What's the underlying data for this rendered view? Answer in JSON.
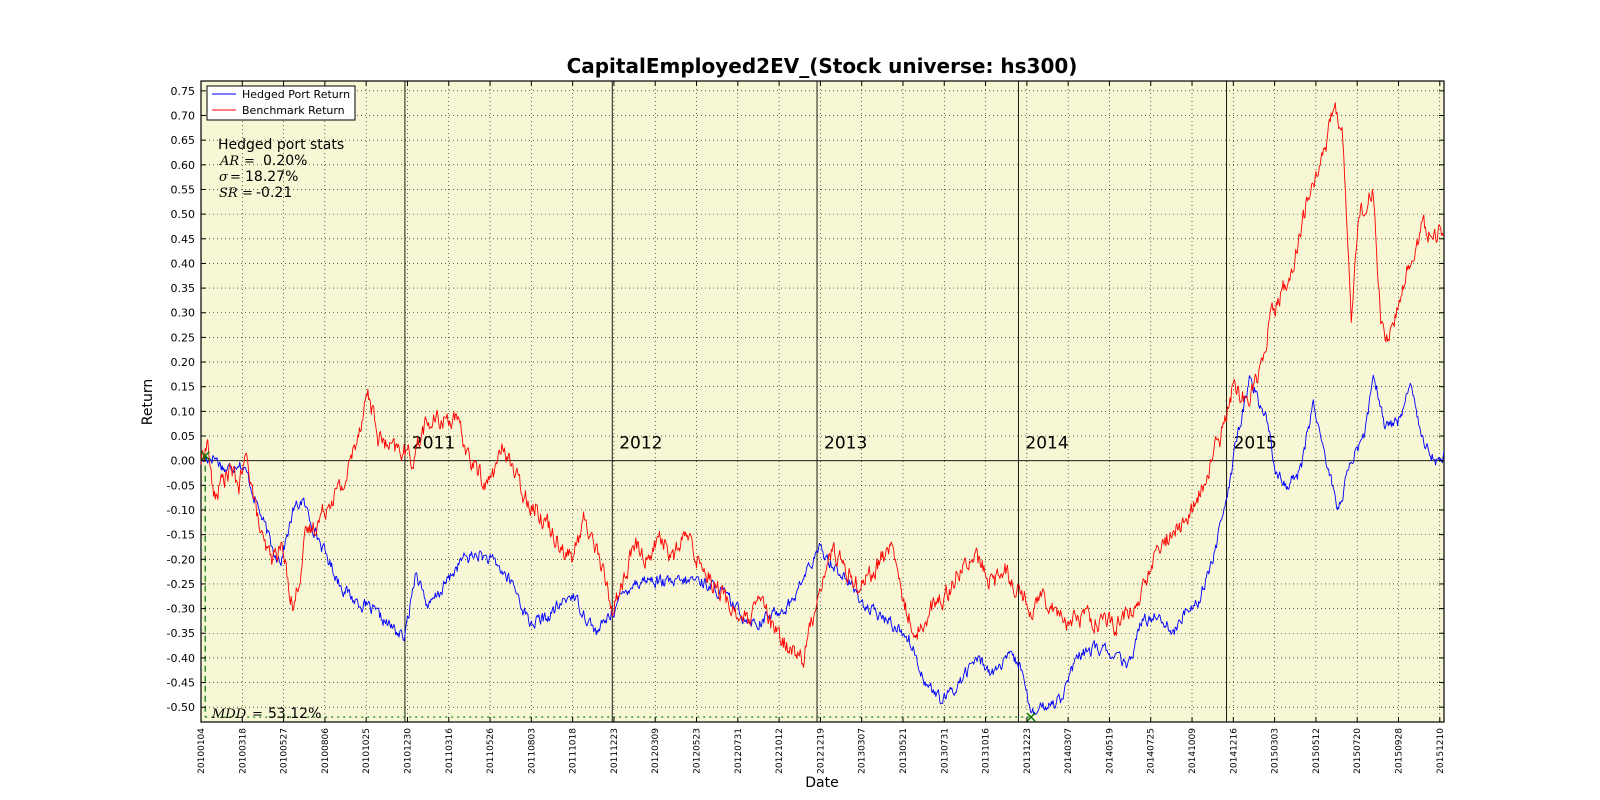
{
  "chart_data": {
    "type": "line",
    "title": "CapitalEmployed2EV_(Stock universe: hs300)",
    "xlabel": "Date",
    "ylabel": "Return",
    "ylim": [
      -0.53,
      0.77
    ],
    "yticks": [
      "0.75",
      "0.70",
      "0.65",
      "0.60",
      "0.55",
      "0.50",
      "0.45",
      "0.40",
      "0.35",
      "0.30",
      "0.25",
      "0.20",
      "0.15",
      "0.10",
      "0.05",
      "0.00",
      "-0.05",
      "-0.10",
      "-0.15",
      "-0.20",
      "-0.25",
      "-0.30",
      "-0.35",
      "-0.40",
      "-0.45",
      "-0.50"
    ],
    "ytick_values": [
      0.75,
      0.7,
      0.65,
      0.6,
      0.55,
      0.5,
      0.45,
      0.4,
      0.35,
      0.3,
      0.25,
      0.2,
      0.15,
      0.1,
      0.05,
      0.0,
      -0.05,
      -0.1,
      -0.15,
      -0.2,
      -0.25,
      -0.3,
      -0.35,
      -0.4,
      -0.45,
      -0.5
    ],
    "xticks": [
      "20100104",
      "20100318",
      "20100527",
      "20100806",
      "20101025",
      "20101230",
      "20110316",
      "20110526",
      "20110803",
      "20111018",
      "20111223",
      "20120309",
      "20120523",
      "20120731",
      "20121012",
      "20121219",
      "20130307",
      "20130521",
      "20130731",
      "20131016",
      "20131223",
      "20140307",
      "20140519",
      "20140725",
      "20141009",
      "20141216",
      "20150303",
      "20150512",
      "20150720",
      "20150928",
      "20151210"
    ],
    "xtick_index": [
      0,
      49,
      98,
      147,
      196,
      245,
      294,
      343,
      392,
      441,
      490,
      539,
      588,
      637,
      686,
      735,
      784,
      833,
      882,
      931,
      980,
      1029,
      1078,
      1127,
      1176,
      1225,
      1274,
      1323,
      1372,
      1421,
      1470
    ],
    "n_points": 1476,
    "year_boundaries": [
      {
        "label": "2011",
        "index": 242
      },
      {
        "label": "2012",
        "index": 488
      },
      {
        "label": "2013",
        "index": 731
      },
      {
        "label": "2014",
        "index": 970
      },
      {
        "label": "2015",
        "index": 1217
      }
    ],
    "grid": true,
    "legend": "top-left",
    "series": [
      {
        "name": "Hedged Port Return",
        "color": "#0000ff",
        "keypoints": [
          [
            0,
            0.0
          ],
          [
            15,
            0.01
          ],
          [
            30,
            -0.02
          ],
          [
            45,
            0.0
          ],
          [
            55,
            -0.03
          ],
          [
            65,
            -0.08
          ],
          [
            75,
            -0.13
          ],
          [
            85,
            -0.18
          ],
          [
            95,
            -0.2
          ],
          [
            110,
            -0.1
          ],
          [
            120,
            -0.08
          ],
          [
            130,
            -0.12
          ],
          [
            145,
            -0.18
          ],
          [
            165,
            -0.25
          ],
          [
            180,
            -0.28
          ],
          [
            200,
            -0.3
          ],
          [
            220,
            -0.33
          ],
          [
            242,
            -0.36
          ],
          [
            255,
            -0.22
          ],
          [
            270,
            -0.3
          ],
          [
            290,
            -0.25
          ],
          [
            310,
            -0.2
          ],
          [
            330,
            -0.19
          ],
          [
            350,
            -0.21
          ],
          [
            370,
            -0.25
          ],
          [
            390,
            -0.33
          ],
          [
            410,
            -0.32
          ],
          [
            440,
            -0.27
          ],
          [
            470,
            -0.35
          ],
          [
            490,
            -0.3
          ],
          [
            510,
            -0.25
          ],
          [
            530,
            -0.24
          ],
          [
            560,
            -0.25
          ],
          [
            590,
            -0.24
          ],
          [
            620,
            -0.27
          ],
          [
            640,
            -0.31
          ],
          [
            660,
            -0.33
          ],
          [
            680,
            -0.31
          ],
          [
            700,
            -0.29
          ],
          [
            720,
            -0.22
          ],
          [
            735,
            -0.18
          ],
          [
            750,
            -0.21
          ],
          [
            770,
            -0.25
          ],
          [
            790,
            -0.3
          ],
          [
            820,
            -0.33
          ],
          [
            840,
            -0.36
          ],
          [
            860,
            -0.45
          ],
          [
            880,
            -0.49
          ],
          [
            900,
            -0.45
          ],
          [
            920,
            -0.4
          ],
          [
            940,
            -0.43
          ],
          [
            960,
            -0.4
          ],
          [
            975,
            -0.42
          ],
          [
            985,
            -0.52
          ],
          [
            1000,
            -0.5
          ],
          [
            1020,
            -0.48
          ],
          [
            1040,
            -0.4
          ],
          [
            1060,
            -0.38
          ],
          [
            1080,
            -0.39
          ],
          [
            1100,
            -0.42
          ],
          [
            1115,
            -0.33
          ],
          [
            1135,
            -0.31
          ],
          [
            1155,
            -0.35
          ],
          [
            1170,
            -0.3
          ],
          [
            1185,
            -0.28
          ],
          [
            1200,
            -0.2
          ],
          [
            1215,
            -0.1
          ],
          [
            1230,
            0.05
          ],
          [
            1245,
            0.17
          ],
          [
            1255,
            0.12
          ],
          [
            1265,
            0.08
          ],
          [
            1275,
            -0.02
          ],
          [
            1290,
            -0.05
          ],
          [
            1305,
            -0.02
          ],
          [
            1320,
            0.12
          ],
          [
            1335,
            0.0
          ],
          [
            1350,
            -0.1
          ],
          [
            1365,
            0.0
          ],
          [
            1380,
            0.05
          ],
          [
            1392,
            0.17
          ],
          [
            1405,
            0.07
          ],
          [
            1420,
            0.08
          ],
          [
            1435,
            0.15
          ],
          [
            1450,
            0.05
          ],
          [
            1465,
            0.0
          ],
          [
            1475,
            0.01
          ]
        ]
      },
      {
        "name": "Benchmark Return",
        "color": "#ff0000",
        "keypoints": [
          [
            0,
            0.0
          ],
          [
            8,
            0.04
          ],
          [
            15,
            -0.08
          ],
          [
            25,
            -0.04
          ],
          [
            35,
            -0.02
          ],
          [
            45,
            -0.05
          ],
          [
            55,
            0.01
          ],
          [
            65,
            -0.1
          ],
          [
            75,
            -0.18
          ],
          [
            85,
            -0.2
          ],
          [
            95,
            -0.17
          ],
          [
            110,
            -0.3
          ],
          [
            125,
            -0.15
          ],
          [
            140,
            -0.12
          ],
          [
            155,
            -0.07
          ],
          [
            170,
            -0.05
          ],
          [
            185,
            0.05
          ],
          [
            198,
            0.14
          ],
          [
            210,
            0.05
          ],
          [
            225,
            0.02
          ],
          [
            242,
            0.02
          ],
          [
            250,
            0.0
          ],
          [
            265,
            0.07
          ],
          [
            280,
            0.08
          ],
          [
            300,
            0.09
          ],
          [
            320,
            0.0
          ],
          [
            340,
            -0.05
          ],
          [
            360,
            0.03
          ],
          [
            380,
            -0.06
          ],
          [
            400,
            -0.1
          ],
          [
            420,
            -0.15
          ],
          [
            440,
            -0.2
          ],
          [
            455,
            -0.12
          ],
          [
            470,
            -0.18
          ],
          [
            488,
            -0.3
          ],
          [
            500,
            -0.25
          ],
          [
            515,
            -0.17
          ],
          [
            530,
            -0.2
          ],
          [
            545,
            -0.15
          ],
          [
            560,
            -0.2
          ],
          [
            575,
            -0.15
          ],
          [
            590,
            -0.2
          ],
          [
            610,
            -0.25
          ],
          [
            630,
            -0.3
          ],
          [
            650,
            -0.33
          ],
          [
            665,
            -0.28
          ],
          [
            680,
            -0.35
          ],
          [
            700,
            -0.38
          ],
          [
            715,
            -0.4
          ],
          [
            735,
            -0.25
          ],
          [
            750,
            -0.18
          ],
          [
            765,
            -0.22
          ],
          [
            780,
            -0.25
          ],
          [
            800,
            -0.22
          ],
          [
            820,
            -0.17
          ],
          [
            835,
            -0.3
          ],
          [
            850,
            -0.35
          ],
          [
            865,
            -0.3
          ],
          [
            880,
            -0.28
          ],
          [
            900,
            -0.22
          ],
          [
            920,
            -0.2
          ],
          [
            940,
            -0.25
          ],
          [
            955,
            -0.22
          ],
          [
            970,
            -0.26
          ],
          [
            985,
            -0.3
          ],
          [
            1000,
            -0.27
          ],
          [
            1015,
            -0.3
          ],
          [
            1030,
            -0.33
          ],
          [
            1050,
            -0.31
          ],
          [
            1070,
            -0.33
          ],
          [
            1090,
            -0.33
          ],
          [
            1110,
            -0.3
          ],
          [
            1130,
            -0.2
          ],
          [
            1150,
            -0.15
          ],
          [
            1170,
            -0.12
          ],
          [
            1190,
            -0.05
          ],
          [
            1210,
            0.05
          ],
          [
            1225,
            0.15
          ],
          [
            1240,
            0.12
          ],
          [
            1255,
            0.18
          ],
          [
            1270,
            0.3
          ],
          [
            1285,
            0.35
          ],
          [
            1300,
            0.42
          ],
          [
            1315,
            0.55
          ],
          [
            1330,
            0.6
          ],
          [
            1345,
            0.73
          ],
          [
            1355,
            0.65
          ],
          [
            1365,
            0.3
          ],
          [
            1375,
            0.5
          ],
          [
            1390,
            0.55
          ],
          [
            1400,
            0.28
          ],
          [
            1410,
            0.25
          ],
          [
            1420,
            0.3
          ],
          [
            1435,
            0.4
          ],
          [
            1450,
            0.48
          ],
          [
            1465,
            0.45
          ],
          [
            1475,
            0.47
          ]
        ]
      }
    ],
    "annotations": {
      "stats_title": "Hedged port stats",
      "ar_label": "AR",
      "ar_value": "0.20%",
      "sigma_label": "σ",
      "sigma_value": "18.27%",
      "sr_label": "SR",
      "sr_value": "-0.21",
      "mdd_label": "MDD",
      "mdd_value": "53.12%",
      "mdd_start_index": 5,
      "mdd_start_value": 0.01,
      "mdd_end_index": 985,
      "mdd_end_value": -0.52,
      "mdd_marker_color": "#007700"
    }
  }
}
